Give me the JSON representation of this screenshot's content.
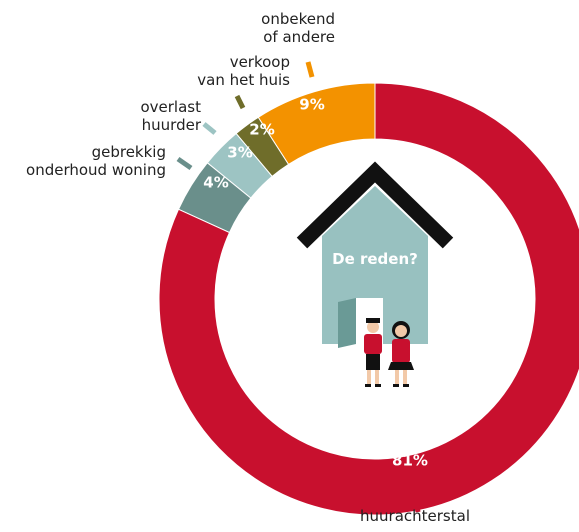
{
  "chart_data": {
    "type": "donut",
    "center_label": "De reden?",
    "categories": [
      "huurachterstal",
      "gebrekkig\nonderhoud woning",
      "overlast\nhuurder",
      "verkoop\nvan het huis",
      "onbekend\nof andere"
    ],
    "values": [
      81,
      4,
      3,
      2,
      9
    ],
    "value_labels": [
      "81%",
      "4%",
      "3%",
      "2%",
      "9%"
    ],
    "colors": [
      "#c8102e",
      "#6a8f8b",
      "#9dc4c3",
      "#6f6d2a",
      "#f39200"
    ]
  }
}
